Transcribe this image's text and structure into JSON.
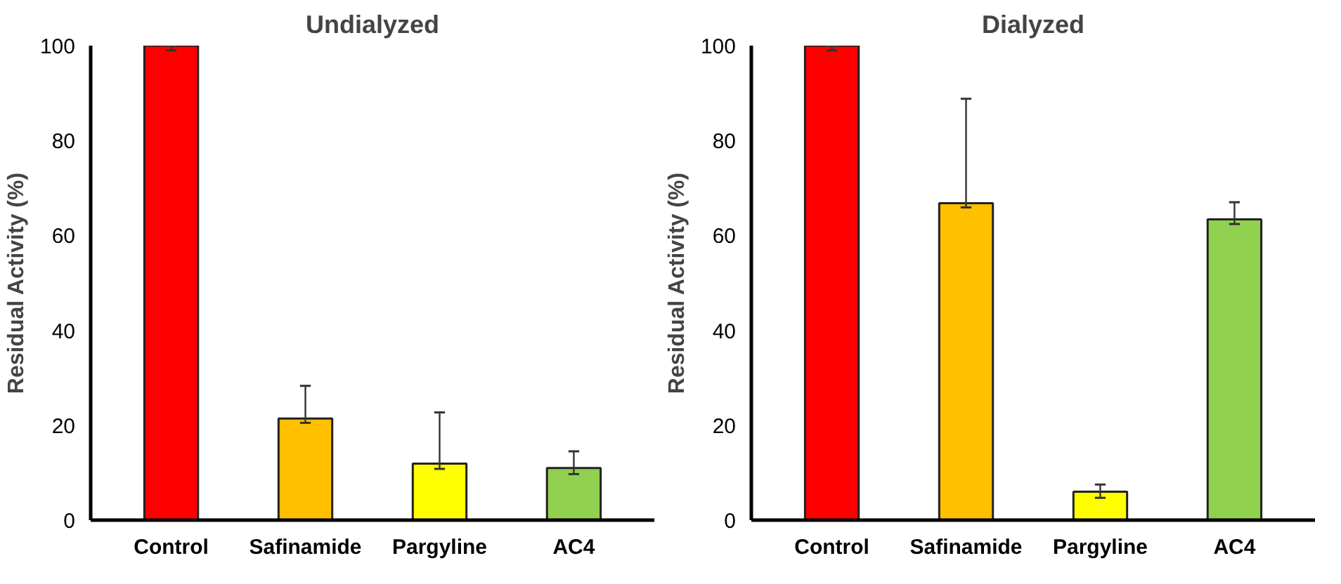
{
  "chart_data": [
    {
      "type": "bar",
      "title": "Undialyzed",
      "ylabel": "Residual Activity (%)",
      "categories": [
        "Control",
        "Safinamide",
        "Pargyline",
        "AC4"
      ],
      "values": [
        100,
        21.4,
        11.9,
        11.0
      ],
      "colors": [
        "#ff0000",
        "#ffc000",
        "#ffff00",
        "#92d050"
      ],
      "errors": [
        [
          99,
          100
        ],
        [
          20.5,
          28.3
        ],
        [
          10.8,
          22.7
        ],
        [
          9.7,
          14.5
        ]
      ],
      "ylim": [
        0,
        100
      ],
      "yticks": [
        0,
        20,
        40,
        60,
        80,
        100
      ],
      "grid": false
    },
    {
      "type": "bar",
      "title": "Dialyzed",
      "ylabel": "Residual Activity (%)",
      "categories": [
        "Control",
        "Safinamide",
        "Pargyline",
        "AC4"
      ],
      "values": [
        100,
        66.8,
        6.0,
        63.4
      ],
      "colors": [
        "#ff0000",
        "#ffc000",
        "#ffff00",
        "#92d050"
      ],
      "errors": [
        [
          99,
          100
        ],
        [
          65.9,
          88.8
        ],
        [
          4.7,
          7.5
        ],
        [
          62.4,
          67.0
        ]
      ],
      "ylim": [
        0,
        100
      ],
      "yticks": [
        0,
        20,
        40,
        60,
        80,
        100
      ],
      "grid": false
    }
  ]
}
